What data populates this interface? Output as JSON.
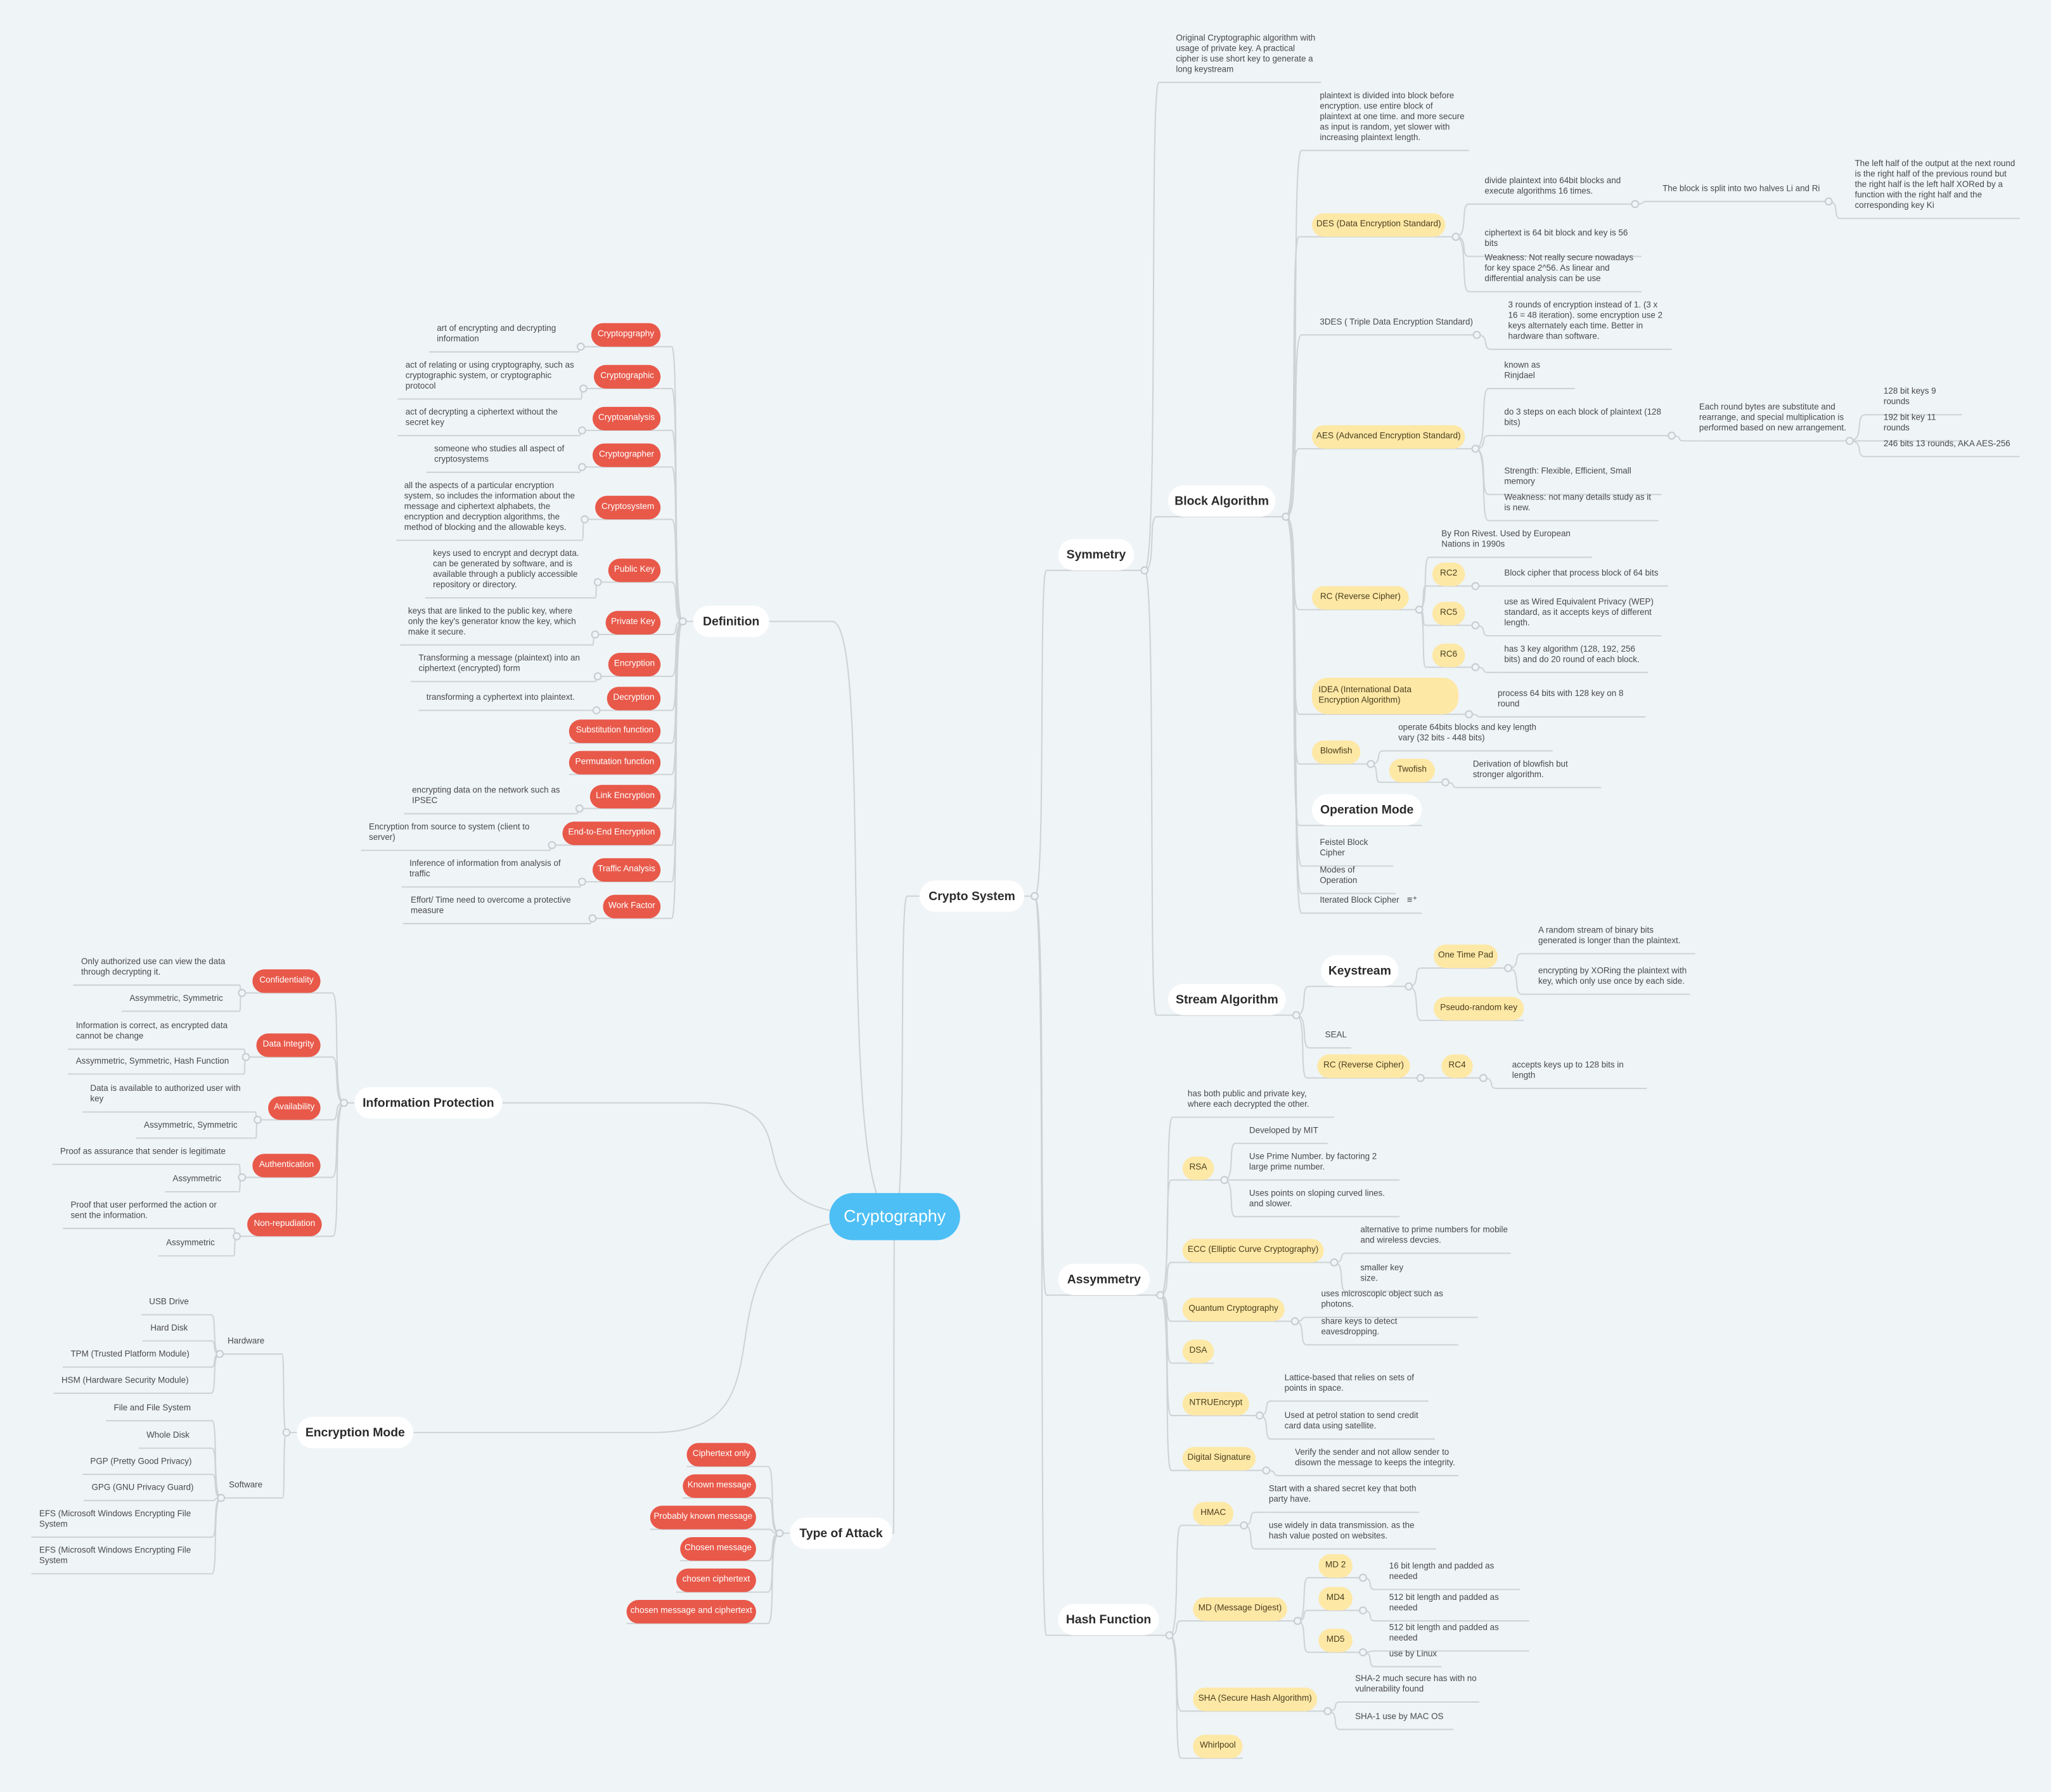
{
  "colors": {
    "background": "#eff4f7",
    "root": "#4dbff5",
    "term_pill": "#e8594a",
    "topic_pill": "#fde8a6",
    "line": "#cfd3d6"
  },
  "root": {
    "label": "Cryptography"
  },
  "crypto_system": {
    "label": "Crypto System",
    "symmetry": {
      "label": "Symmetry",
      "note": "Original Cryptographic algorithm with usage of private key. A practical cipher is use short key to generate a long keystream",
      "block": {
        "label": "Block Algorithm",
        "note": "plaintext is divided into block before encryption. use entire block of plaintext at one time. and more secure as input is random, yet slower with increasing plaintext length.",
        "des": {
          "label": "DES (Data Encryption Standard)",
          "items": [
            "divide plaintext into 64bit blocks and execute algorithms 16 times.",
            "ciphertext is 64 bit block and key is 56 bits",
            "Weakness: Not really secure nowadays for key space 2^56. As linear and differential analysis can be use"
          ],
          "split": "The block is split into two halves Li and Ri",
          "split_detail": "The left half of the output at the next round is the right half of the previous round but the right half is the left half XORed by a function with the right half and the corresponding key Ki"
        },
        "tdes": {
          "label": "3DES ( Triple Data Encryption Standard)",
          "items": [
            "3 rounds of encryption instead of 1. (3 x 16 = 48 iteration).  some encryption use 2 keys alternately each time.  Better in hardware than software."
          ]
        },
        "aes": {
          "label": "AES (Advanced Encryption Standard)",
          "items": [
            "known as Rinjdael",
            "do 3 steps on each block of plaintext (128 bits)",
            "Strength: Flexible, Efficient, Small memory",
            "Weakness: not many details study as it is new."
          ],
          "round": "Each round bytes are substitute and rearrange, and special multiplication is performed based on new arrangement.",
          "keys": [
            "128 bit keys 9 rounds",
            "192 bit key 11 rounds",
            "246 bits 13 rounds, AKA AES-256"
          ]
        },
        "rc": {
          "label": "RC (Reverse Cipher)",
          "note": "By Ron Rivest. Used by European Nations in 1990s",
          "variants": [
            {
              "label": "RC2",
              "desc": "Block cipher that process block of 64 bits"
            },
            {
              "label": "RC5",
              "desc": "use as Wired Equivalent Privacy (WEP) standard, as it accepts keys of different length."
            },
            {
              "label": "RC6",
              "desc": "has 3 key algorithm (128, 192, 256 bits) and do 20 round of each block."
            }
          ]
        },
        "idea": {
          "label": "IDEA (International Data Encryption Algorithm)",
          "items": [
            "process 64 bits with 128 key on 8 round"
          ]
        },
        "blowfish": {
          "label": "Blowfish",
          "note": "operate 64bits blocks and key length vary (32 bits - 448 bits)",
          "twofish": {
            "label": "Twofish",
            "desc": "Derivation of blowfish but stronger algorithm."
          }
        },
        "operation_mode": {
          "label": "Operation Mode"
        },
        "others": [
          "Feistel Block Cipher",
          "Modes of Operation",
          "Iterated Block Cipher"
        ],
        "note_icon": "note-icon"
      },
      "stream": {
        "label": "Stream Algorithm",
        "keystream": {
          "label": "Keystream",
          "otp": {
            "label": "One Time Pad",
            "items": [
              "A random stream of binary bits generated is longer than the plaintext.",
              "encrypting by XORing the plaintext with key, which only use once by each side."
            ]
          },
          "prk": {
            "label": "Pseudo-random key"
          }
        },
        "seal": "SEAL",
        "rc": {
          "label": "RC (Reverse Cipher)",
          "rc4": {
            "label": "RC4",
            "desc": "accepts keys up to 128 bits in length"
          }
        }
      }
    },
    "asymmetry": {
      "label": "Assymmetry",
      "note": "has both public and private key, where each decrypted the other.",
      "rsa": {
        "label": "RSA",
        "items": [
          "Developed by MIT",
          "Use Prime Number. by factoring 2 large prime number.",
          "Uses points on sloping curved lines. and slower."
        ]
      },
      "ecc": {
        "label": "ECC (Elliptic Curve Cryptography)",
        "items": [
          "alternative to prime numbers for mobile and wireless devcies.",
          "smaller key size."
        ]
      },
      "quantum": {
        "label": "Quantum Cryptography",
        "items": [
          "uses microscopic object such as photons.",
          "share keys to detect eavesdropping."
        ]
      },
      "dsa": {
        "label": "DSA"
      },
      "ntru": {
        "label": "NTRUEncrypt",
        "items": [
          "Lattice-based that relies on sets of points in space.",
          "Used at petrol station to send credit card data using satellite."
        ]
      },
      "dsig": {
        "label": "Digital Signature",
        "items": [
          "Verify the sender and not allow sender to disown the message to keeps the integrity."
        ]
      }
    },
    "hash": {
      "label": "Hash Function",
      "hmac": {
        "label": "HMAC",
        "items": [
          "Start with a shared secret key that both party have.",
          "use widely in data transmission. as the hash value posted on websites."
        ]
      },
      "md": {
        "label": "MD (Message Digest)",
        "variants": [
          {
            "label": "MD 2",
            "items": [
              "16 bit length and padded as needed"
            ]
          },
          {
            "label": "MD4",
            "items": [
              "512 bit length and padded as needed"
            ]
          },
          {
            "label": "MD5",
            "items": [
              "512 bit length and padded as needed",
              "use by Linux"
            ]
          }
        ]
      },
      "sha": {
        "label": "SHA (Secure Hash Algorithm)",
        "items": [
          "SHA-2 much secure has with no vulnerability found",
          "SHA-1 use by MAC OS"
        ]
      },
      "whirlpool": {
        "label": "Whirlpool"
      }
    }
  },
  "definition": {
    "label": "Definition",
    "terms": [
      {
        "label": "Cryptopgraphy",
        "desc": "art of encrypting and decrypting information"
      },
      {
        "label": "Cryptographic",
        "desc": "act of relating or using cryptography, such as cryptographic system, or cryptographic protocol"
      },
      {
        "label": "Cryptoanalysis",
        "desc": "act of decrypting a ciphertext without the secret key"
      },
      {
        "label": "Cryptographer",
        "desc": "someone who studies all aspect of cryptosystems"
      },
      {
        "label": "Cryptosystem",
        "desc": "all the aspects of a particular encryption system, so includes the information about the message and ciphertext alphabets, the encryption and decryption algorithms, the method of blocking and the allowable keys."
      },
      {
        "label": "Public Key",
        "desc": "keys used to encrypt and decrypt data. can be generated by software, and is available through a publicly accessible repository or directory."
      },
      {
        "label": "Private Key",
        "desc": "keys that are linked to the public key, where only the key's generator know the key, which make it secure."
      },
      {
        "label": "Encryption",
        "desc": "Transforming a message (plaintext) into an ciphertext (encrypted) form"
      },
      {
        "label": "Decryption",
        "desc": "transforming a cyphertext into plaintext."
      },
      {
        "label": "Substitution function"
      },
      {
        "label": "Permutation function"
      },
      {
        "label": "Link Encryption",
        "desc": "encrypting data on the network such as IPSEC"
      },
      {
        "label": "End-to-End Encryption",
        "desc": "Encryption from source to system (client to server)"
      },
      {
        "label": "Traffic Analysis",
        "desc": "Inference of information from analysis of traffic"
      },
      {
        "label": "Work Factor",
        "desc": "Effort/ Time need to overcome a protective measure"
      }
    ]
  },
  "information_protection": {
    "label": "Information Protection",
    "items": [
      {
        "label": "Confidentiality",
        "desc": "Only authorized use can view the data through decrypting it.",
        "type": "Assymmetric, Symmetric"
      },
      {
        "label": "Data Integrity",
        "desc": "Information is correct, as encrypted data cannot be change",
        "type": "Assymmetric, Symmetric, Hash Function"
      },
      {
        "label": "Availability",
        "desc": "Data is available to authorized user with key",
        "type": "Assymmetric, Symmetric"
      },
      {
        "label": "Authentication",
        "desc": "Proof as assurance that sender is legitimate",
        "type": "Assymmetric"
      },
      {
        "label": "Non-repudiation",
        "desc": "Proof that user performed the action or sent the information.",
        "type": "Assymmetric"
      }
    ]
  },
  "encryption_mode": {
    "label": "Encryption Mode",
    "hardware": {
      "label": "Hardware",
      "items": [
        "USB Drive",
        "Hard Disk",
        "TPM (Trusted Platform Module)",
        "HSM (Hardware Security Module)"
      ]
    },
    "software": {
      "label": "Software",
      "items": [
        "File and File System",
        "Whole Disk",
        "PGP (Pretty Good Privacy)",
        "GPG (GNU Privacy Guard)",
        "EFS (Microsoft Windows Encrypting File System",
        "EFS (Microsoft Windows Encrypting File System"
      ]
    }
  },
  "type_of_attack": {
    "label": "Type of Attack",
    "items": [
      "Ciphertext only",
      "Known message",
      "Probably known message",
      "Chosen message",
      "chosen ciphertext",
      "chosen message and ciphertext"
    ]
  }
}
